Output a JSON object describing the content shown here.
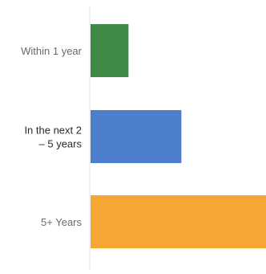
{
  "chart_data": {
    "type": "bar",
    "orientation": "horizontal",
    "title": "",
    "xlabel": "",
    "ylabel": "",
    "xlim": [
      0,
      100
    ],
    "categories": [
      {
        "lines": [
          "Within 1 year"
        ],
        "emphasis": false
      },
      {
        "lines": [
          "In the next 2",
          "– 5 years"
        ],
        "emphasis": true
      },
      {
        "lines": [
          "5+ Years"
        ],
        "emphasis": false
      }
    ],
    "values": [
      22,
      52,
      100
    ],
    "colors": [
      "#3f8a47",
      "#4e7fcc",
      "#f6a633"
    ],
    "axis_color": "#e4e4e4",
    "grid": false,
    "legend": "none"
  }
}
